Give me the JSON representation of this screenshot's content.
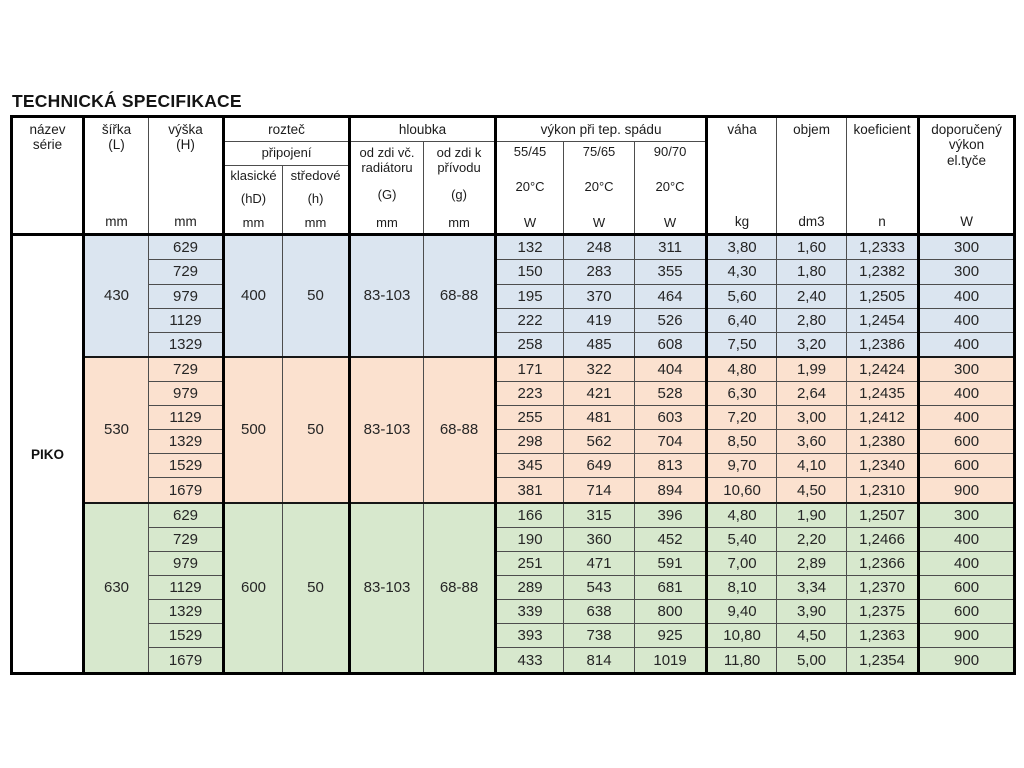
{
  "title": "TECHNICKÁ SPECIFIKACE",
  "series_label": "PIKO",
  "colors": {
    "block_430_bg": "#dbe5f0",
    "block_530_bg": "#fbe1cf",
    "block_630_bg": "#d7e8cd",
    "border": "#000000"
  },
  "header": {
    "nazev": "název\nsérie",
    "sirka": "šířka\n(L)",
    "vyska": "výška\n(H)",
    "roztec": "rozteč",
    "pripojeni": "připojení",
    "klasicke": "klasické",
    "klasicke_sub": "(hD)",
    "stredove": "středové",
    "stredove_sub": "(h)",
    "hloubka": "hloubka",
    "od_zdi_vc": "od zdi vč.\nradiátoru",
    "od_zdi_vc_sub": "(G)",
    "od_zdi_k": "od zdi k\npřívodu",
    "od_zdi_k_sub": "(g)",
    "vykon": "výkon při tep. spádu",
    "temp_55": "55/45",
    "temp_75": "75/65",
    "temp_90": "90/70",
    "temp_ref": "20°C",
    "vaha": "váha",
    "objem": "objem",
    "koeficient": "koeficient",
    "doporuceny": "doporučený\nvýkon\nel.tyče",
    "unit_mm": "mm",
    "unit_w": "W",
    "unit_kg": "kg",
    "unit_dm3": "dm3",
    "unit_n": "n"
  },
  "blocks": [
    {
      "sirka": "430",
      "roztec_klasicke": "400",
      "roztec_stredove": "50",
      "hloubka_od_zdi_vc": "83-103",
      "hloubka_od_zdi_k": "68-88",
      "color": "#dbe5f0",
      "rows": [
        {
          "vyska": "629",
          "w55": "132",
          "w75": "248",
          "w90": "311",
          "vaha": "3,80",
          "objem": "1,60",
          "koef": "1,2333",
          "dop": "300"
        },
        {
          "vyska": "729",
          "w55": "150",
          "w75": "283",
          "w90": "355",
          "vaha": "4,30",
          "objem": "1,80",
          "koef": "1,2382",
          "dop": "300"
        },
        {
          "vyska": "979",
          "w55": "195",
          "w75": "370",
          "w90": "464",
          "vaha": "5,60",
          "objem": "2,40",
          "koef": "1,2505",
          "dop": "400"
        },
        {
          "vyska": "1129",
          "w55": "222",
          "w75": "419",
          "w90": "526",
          "vaha": "6,40",
          "objem": "2,80",
          "koef": "1,2454",
          "dop": "400"
        },
        {
          "vyska": "1329",
          "w55": "258",
          "w75": "485",
          "w90": "608",
          "vaha": "7,50",
          "objem": "3,20",
          "koef": "1,2386",
          "dop": "400"
        }
      ]
    },
    {
      "sirka": "530",
      "roztec_klasicke": "500",
      "roztec_stredove": "50",
      "hloubka_od_zdi_vc": "83-103",
      "hloubka_od_zdi_k": "68-88",
      "color": "#fbe1cf",
      "rows": [
        {
          "vyska": "729",
          "w55": "171",
          "w75": "322",
          "w90": "404",
          "vaha": "4,80",
          "objem": "1,99",
          "koef": "1,2424",
          "dop": "300"
        },
        {
          "vyska": "979",
          "w55": "223",
          "w75": "421",
          "w90": "528",
          "vaha": "6,30",
          "objem": "2,64",
          "koef": "1,2435",
          "dop": "400"
        },
        {
          "vyska": "1129",
          "w55": "255",
          "w75": "481",
          "w90": "603",
          "vaha": "7,20",
          "objem": "3,00",
          "koef": "1,2412",
          "dop": "400"
        },
        {
          "vyska": "1329",
          "w55": "298",
          "w75": "562",
          "w90": "704",
          "vaha": "8,50",
          "objem": "3,60",
          "koef": "1,2380",
          "dop": "600"
        },
        {
          "vyska": "1529",
          "w55": "345",
          "w75": "649",
          "w90": "813",
          "vaha": "9,70",
          "objem": "4,10",
          "koef": "1,2340",
          "dop": "600"
        },
        {
          "vyska": "1679",
          "w55": "381",
          "w75": "714",
          "w90": "894",
          "vaha": "10,60",
          "objem": "4,50",
          "koef": "1,2310",
          "dop": "900"
        }
      ]
    },
    {
      "sirka": "630",
      "roztec_klasicke": "600",
      "roztec_stredove": "50",
      "hloubka_od_zdi_vc": "83-103",
      "hloubka_od_zdi_k": "68-88",
      "color": "#d7e8cd",
      "rows": [
        {
          "vyska": "629",
          "w55": "166",
          "w75": "315",
          "w90": "396",
          "vaha": "4,80",
          "objem": "1,90",
          "koef": "1,2507",
          "dop": "300"
        },
        {
          "vyska": "729",
          "w55": "190",
          "w75": "360",
          "w90": "452",
          "vaha": "5,40",
          "objem": "2,20",
          "koef": "1,2466",
          "dop": "400"
        },
        {
          "vyska": "979",
          "w55": "251",
          "w75": "471",
          "w90": "591",
          "vaha": "7,00",
          "objem": "2,89",
          "koef": "1,2366",
          "dop": "400"
        },
        {
          "vyska": "1129",
          "w55": "289",
          "w75": "543",
          "w90": "681",
          "vaha": "8,10",
          "objem": "3,34",
          "koef": "1,2370",
          "dop": "600"
        },
        {
          "vyska": "1329",
          "w55": "339",
          "w75": "638",
          "w90": "800",
          "vaha": "9,40",
          "objem": "3,90",
          "koef": "1,2375",
          "dop": "600"
        },
        {
          "vyska": "1529",
          "w55": "393",
          "w75": "738",
          "w90": "925",
          "vaha": "10,80",
          "objem": "4,50",
          "koef": "1,2363",
          "dop": "900"
        },
        {
          "vyska": "1679",
          "w55": "433",
          "w75": "814",
          "w90": "1019",
          "vaha": "11,80",
          "objem": "5,00",
          "koef": "1,2354",
          "dop": "900"
        }
      ]
    }
  ]
}
